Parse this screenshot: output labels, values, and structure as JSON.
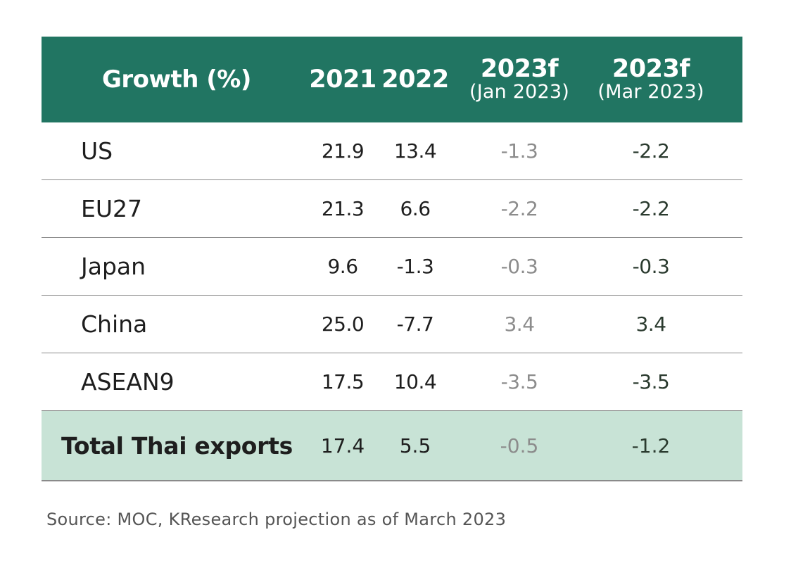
{
  "chart_data": {
    "type": "table",
    "columns": {
      "label": "Growth (%)",
      "c2021": "2021",
      "c2022": "2022",
      "jan_main": "2023f",
      "jan_sub": "(Jan 2023)",
      "mar_main": "2023f",
      "mar_sub": "(Mar 2023)"
    },
    "rows": [
      {
        "label": "US",
        "v2021": "21.9",
        "v2022": "13.4",
        "jan": "-1.3",
        "mar": "-2.2"
      },
      {
        "label": "EU27",
        "v2021": "21.3",
        "v2022": "6.6",
        "jan": "-2.2",
        "mar": "-2.2"
      },
      {
        "label": "Japan",
        "v2021": "9.6",
        "v2022": "-1.3",
        "jan": "-0.3",
        "mar": "-0.3"
      },
      {
        "label": "China",
        "v2021": "25.0",
        "v2022": "-7.7",
        "jan": "3.4",
        "mar": "3.4"
      },
      {
        "label": "ASEAN9",
        "v2021": "17.5",
        "v2022": "10.4",
        "jan": "-3.5",
        "mar": "-3.5"
      }
    ],
    "total": {
      "label": "Total Thai exports",
      "v2021": "17.4",
      "v2022": "5.5",
      "jan": "-0.5",
      "mar": "-1.2"
    },
    "source": "Source: MOC, KResearch projection as of March 2023",
    "colors": {
      "header_bg": "#217562",
      "total_bg": "#c8e3d6",
      "forecast_jan_text": "#8c8c8c"
    }
  }
}
